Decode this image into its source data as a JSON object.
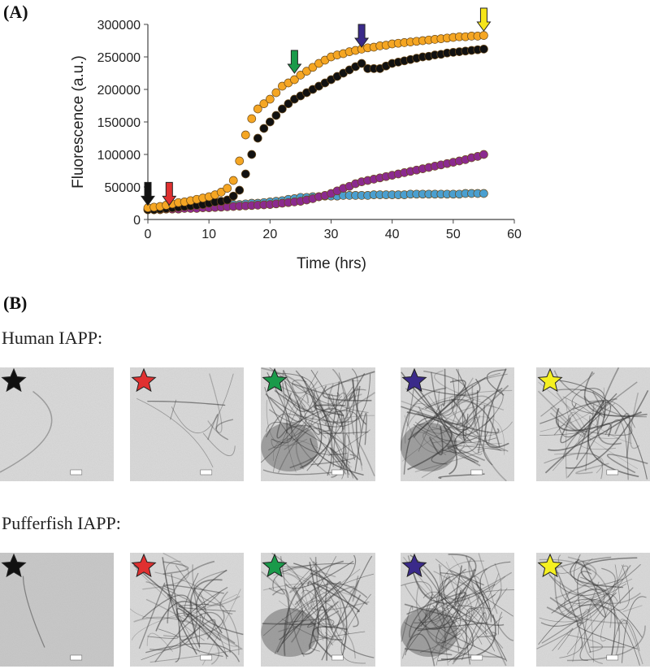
{
  "chart_data": {
    "type": "scatter",
    "panel_label": "(A)",
    "xlabel": "Time (hrs)",
    "ylabel": "Fluorescence (a.u.)",
    "xlim": [
      0,
      60
    ],
    "xticks": [
      0,
      10,
      20,
      30,
      40,
      50,
      60
    ],
    "ylim": [
      0,
      300000
    ],
    "yticks": [
      0,
      50000,
      100000,
      150000,
      200000,
      250000,
      300000
    ],
    "x": [
      0,
      1,
      2,
      3,
      4,
      5,
      6,
      7,
      8,
      9,
      10,
      11,
      12,
      13,
      14,
      15,
      16,
      17,
      18,
      19,
      20,
      21,
      22,
      23,
      24,
      25,
      26,
      27,
      28,
      29,
      30,
      31,
      32,
      33,
      34,
      35,
      36,
      37,
      38,
      39,
      40,
      41,
      42,
      43,
      44,
      45,
      46,
      47,
      48,
      49,
      50,
      51,
      52,
      53,
      54,
      55
    ],
    "series": [
      {
        "color": "#4a9fd0",
        "values": [
          16000,
          16000,
          17000,
          17000,
          18000,
          18000,
          18000,
          19000,
          19000,
          20000,
          20000,
          21000,
          21000,
          22000,
          23000,
          23000,
          24000,
          25000,
          25000,
          26000,
          27000,
          28000,
          29000,
          31000,
          32000,
          34000,
          34000,
          35000,
          35000,
          36000,
          36000,
          36000,
          37000,
          37000,
          37000,
          37000,
          37000,
          38000,
          38000,
          38000,
          38000,
          38000,
          38000,
          39000,
          39000,
          39000,
          39000,
          39000,
          39000,
          39000,
          39000,
          39000,
          40000,
          40000,
          40000,
          40000
        ]
      },
      {
        "color": "#8b2a8f",
        "values": [
          15000,
          15000,
          15000,
          16000,
          16000,
          16000,
          17000,
          17000,
          17000,
          18000,
          18000,
          18500,
          19000,
          19500,
          20000,
          20500,
          21000,
          21500,
          22000,
          22500,
          23000,
          24000,
          25000,
          26000,
          27000,
          28000,
          30000,
          32000,
          35000,
          37000,
          40000,
          44000,
          48000,
          51000,
          55000,
          58000,
          60000,
          62000,
          64000,
          66000,
          68000,
          70000,
          72000,
          74000,
          76000,
          78000,
          80000,
          82000,
          84000,
          86000,
          88000,
          90000,
          92000,
          95000,
          97000,
          100000
        ]
      },
      {
        "color": "#111111",
        "values": [
          15000,
          15000,
          16000,
          17000,
          18000,
          19000,
          20000,
          21000,
          22000,
          23000,
          25000,
          27000,
          28000,
          30000,
          36000,
          45000,
          70000,
          100000,
          125000,
          140000,
          150000,
          160000,
          170000,
          178000,
          185000,
          190000,
          195000,
          200000,
          205000,
          210000,
          215000,
          220000,
          225000,
          230000,
          235000,
          240000,
          232000,
          232000,
          232000,
          236000,
          240000,
          242000,
          244000,
          246000,
          248000,
          250000,
          251000,
          253000,
          254000,
          256000,
          257000,
          258000,
          259000,
          260000,
          261000,
          262000
        ]
      },
      {
        "color": "#f5a623",
        "values": [
          18000,
          19000,
          20000,
          22000,
          24000,
          26000,
          27000,
          29000,
          31000,
          33000,
          35000,
          38000,
          42000,
          48000,
          60000,
          90000,
          130000,
          155000,
          170000,
          178000,
          185000,
          195000,
          205000,
          210000,
          215000,
          222000,
          228000,
          234000,
          240000,
          245000,
          250000,
          253000,
          255000,
          258000,
          260000,
          262000,
          264000,
          265000,
          267000,
          268000,
          270000,
          271000,
          272000,
          273000,
          274000,
          275000,
          276000,
          277000,
          278000,
          279000,
          280000,
          281000,
          281000,
          282000,
          282000,
          283000
        ]
      }
    ],
    "annotations": [
      {
        "x": 0,
        "y": 22000,
        "color": "#111111"
      },
      {
        "x": 3.5,
        "y": 22000,
        "color": "#e03030"
      },
      {
        "x": 24,
        "y": 225000,
        "color": "#1a9a4a"
      },
      {
        "x": 35,
        "y": 265000,
        "color": "#3a2a8a"
      },
      {
        "x": 55,
        "y": 290000,
        "color": "#f5e51a"
      }
    ]
  },
  "figure": {
    "panel_label": "(B)",
    "rows": [
      {
        "label": "Human IAPP:",
        "stars": [
          "#111111",
          "#e03030",
          "#1a9a4a",
          "#3a2a8a",
          "#f5f020"
        ]
      },
      {
        "label": "Pufferfish IAPP:",
        "stars": [
          "#111111",
          "#e03030",
          "#1a9a4a",
          "#3a2a8a",
          "#f5f020"
        ]
      }
    ]
  }
}
